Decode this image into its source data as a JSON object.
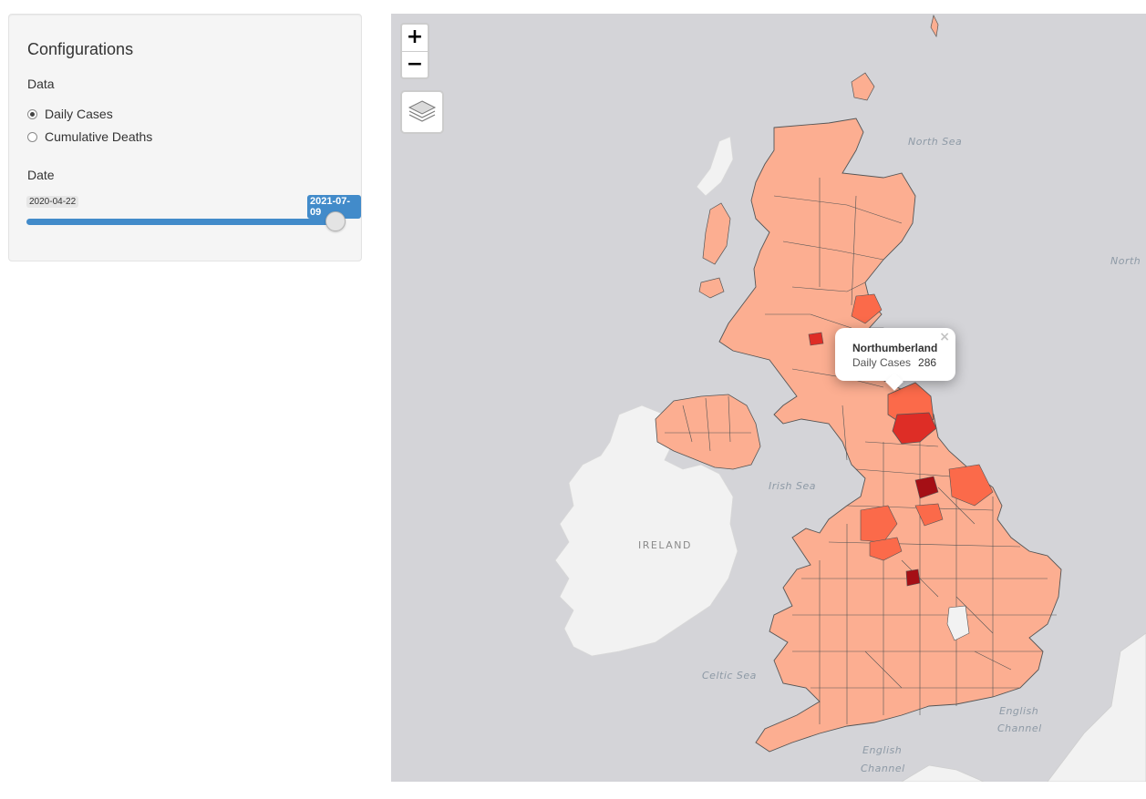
{
  "sidebar": {
    "title": "Configurations",
    "data_label": "Data",
    "options": [
      {
        "label": "Daily Cases",
        "selected": true
      },
      {
        "label": "Cumulative Deaths",
        "selected": false
      }
    ],
    "date_label": "Date",
    "slider": {
      "min": "2020-04-22",
      "value": "2021-07-09",
      "fill_fraction": 1.0,
      "color": "#428bca"
    }
  },
  "map": {
    "zoom_in": "+",
    "zoom_out": "−",
    "layers_icon": "layers-icon",
    "labels": {
      "north_sea": "North Sea",
      "north_right": "North",
      "irish_sea": "Irish Sea",
      "ireland": "IRELAND",
      "celtic_sea": "Celtic Sea",
      "english_channel_1": "English",
      "channel_1": "Channel",
      "english_channel_2": "English",
      "channel_2": "Channel"
    },
    "colors": {
      "water": "#d4d4d8",
      "land": "#f2f2f2",
      "low": "#fcae91",
      "mid": "#fb6a4a",
      "high": "#de2d26",
      "max": "#a50f15"
    },
    "popup": {
      "title": "Northumberland",
      "metric": "Daily Cases",
      "value": "286",
      "close": "×"
    }
  }
}
